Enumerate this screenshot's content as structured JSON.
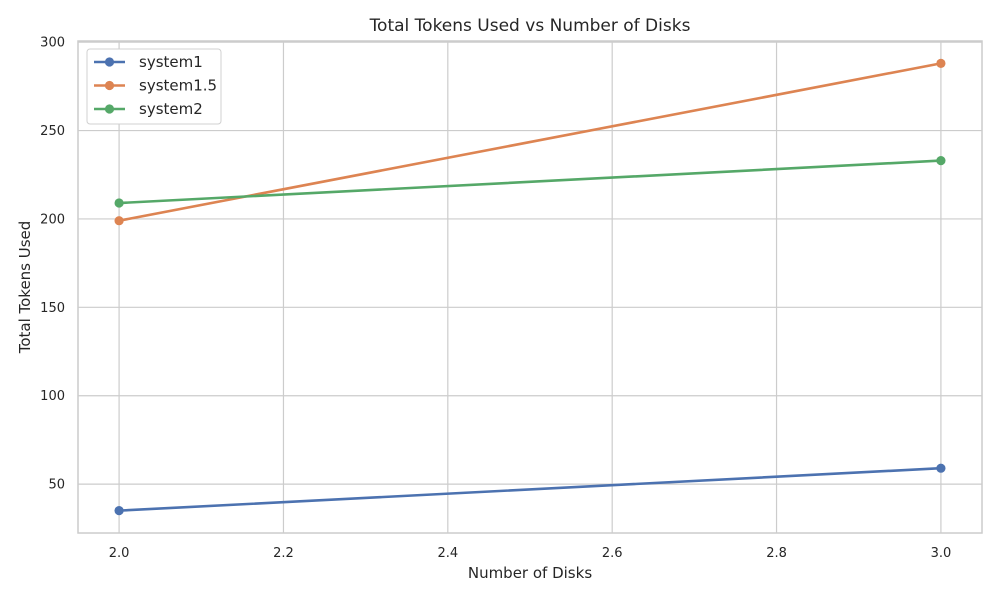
{
  "chart_data": {
    "type": "line",
    "title": "Total Tokens Used vs Number of Disks",
    "xlabel": "Number of Disks",
    "ylabel": "Total Tokens Used",
    "x": [
      2.0,
      3.0
    ],
    "xlim": [
      1.95,
      3.05
    ],
    "ylim": [
      22.35,
      300.65
    ],
    "x_ticks": [
      2.0,
      2.2,
      2.4,
      2.6,
      2.8,
      3.0
    ],
    "x_tick_labels": [
      "2.0",
      "2.2",
      "2.4",
      "2.6",
      "2.8",
      "3.0"
    ],
    "y_ticks": [
      50,
      100,
      150,
      200,
      250,
      300
    ],
    "y_tick_labels": [
      "50",
      "100",
      "150",
      "200",
      "250",
      "300"
    ],
    "grid": true,
    "legend_position": "upper-left",
    "series": [
      {
        "name": "system1",
        "values": [
          35,
          59
        ],
        "color": "#4c72b0"
      },
      {
        "name": "system1.5",
        "values": [
          199,
          288
        ],
        "color": "#dd8452"
      },
      {
        "name": "system2",
        "values": [
          209,
          233
        ],
        "color": "#55a868"
      }
    ]
  }
}
